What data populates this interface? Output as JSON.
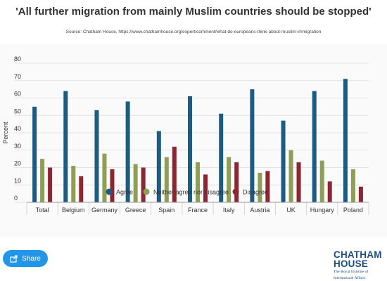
{
  "header": {
    "title": "'All further migration from mainly Muslim countries should be stopped'",
    "source": "Source: Chatham House, https://www.chathamhouse.org/expert/comment/what-do-europeans-think-about-muslim-immigration"
  },
  "chart_data": {
    "type": "bar",
    "title": "'All further migration from mainly Muslim countries should be stopped'",
    "categories": [
      "Total",
      "Belgium",
      "Germany",
      "Greece",
      "Spain",
      "France",
      "Italy",
      "Austria",
      "UK",
      "Hungary",
      "Poland"
    ],
    "series": [
      {
        "name": "Agree",
        "color": "#1d5c82",
        "values": [
          55,
          64,
          53,
          58,
          41,
          61,
          51,
          65,
          47,
          64,
          71
        ]
      },
      {
        "name": "Neither agree nor disagree",
        "color": "#8e9e55",
        "values": [
          25,
          21,
          28,
          22,
          26,
          23,
          26,
          17,
          30,
          24,
          19
        ]
      },
      {
        "name": "Disagree",
        "color": "#8e2532",
        "values": [
          20,
          15,
          19,
          20,
          32,
          16,
          23,
          18,
          23,
          12,
          9
        ]
      }
    ],
    "ylabel": "Percent",
    "xlabel": "",
    "ylim": [
      0,
      80
    ],
    "yticks": [
      0,
      10,
      20,
      30,
      40,
      50,
      60,
      70,
      80
    ],
    "grid": true,
    "legend_position": "bottom"
  },
  "share": {
    "label": "Share",
    "icon": "share-icon"
  },
  "logo": {
    "line1": "CHATHAM",
    "line2": "HOUSE",
    "tagline1": "The Royal Institute of",
    "tagline2": "International Affairs"
  }
}
